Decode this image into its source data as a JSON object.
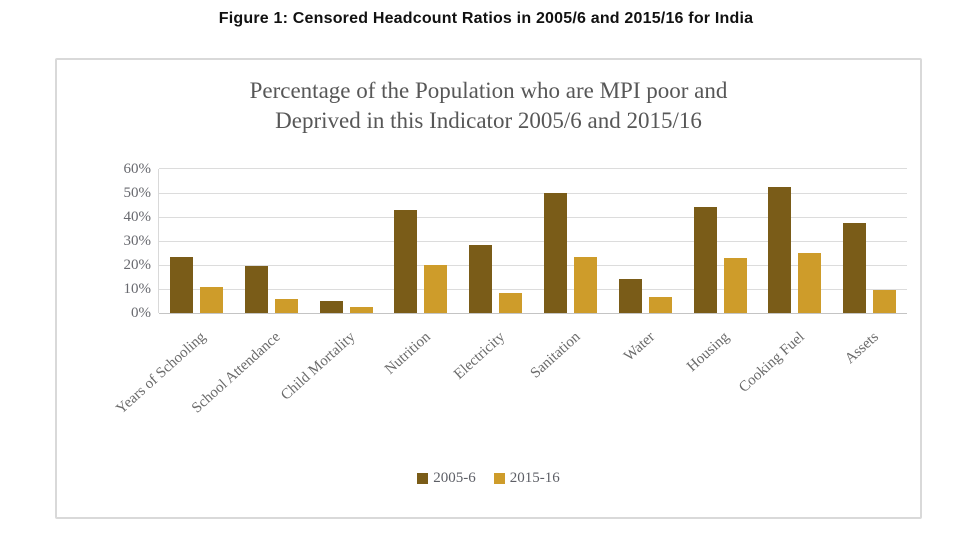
{
  "figure_caption": "Figure 1: Censored Headcount Ratios in 2005/6 and 2015/16 for India",
  "chart_data": {
    "type": "bar",
    "title_lines": [
      "Percentage of the Population who are MPI poor and",
      "Deprived in this Indicator 2005/6 and 2015/16"
    ],
    "categories": [
      "Years of Schooling",
      "School Attendance",
      "Child Mortality",
      "Nutrition",
      "Electricity",
      "Sanitation",
      "Water",
      "Housing",
      "Cooking Fuel",
      "Assets"
    ],
    "series": [
      {
        "name": "2005-6",
        "color": "#7a5c18",
        "values": [
          23.5,
          19.5,
          5,
          43,
          28.5,
          50,
          14,
          44,
          52.5,
          37.5
        ]
      },
      {
        "name": "2015-16",
        "color": "#ce9c2a",
        "values": [
          11,
          6,
          2.5,
          20,
          8.5,
          23.5,
          6.5,
          23,
          25,
          9.5
        ]
      }
    ],
    "y_axis": {
      "min": 0,
      "max": 60,
      "step": 10,
      "tick_labels": [
        "0%",
        "10%",
        "20%",
        "30%",
        "40%",
        "50%",
        "60%"
      ],
      "unit": "%"
    },
    "grid": true,
    "legend_position": "bottom",
    "colors": {
      "gridline": "#dcdcdc",
      "axis_line": "#c4c4c4",
      "tick_text": "#68696f",
      "title_text": "#575757"
    }
  }
}
